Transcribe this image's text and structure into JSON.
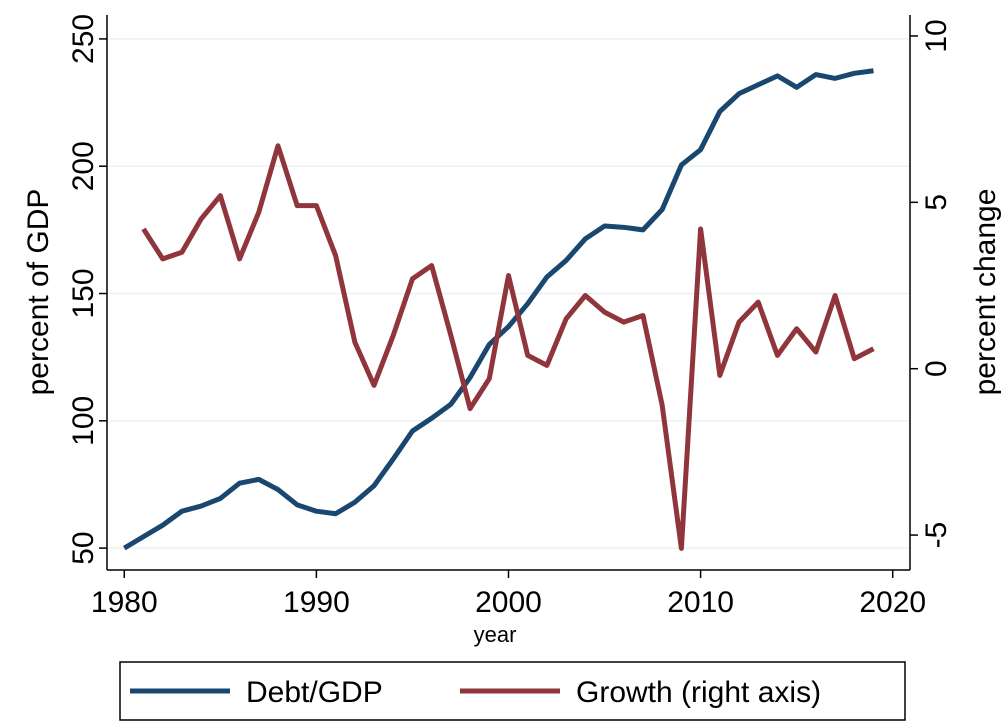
{
  "chart_data": {
    "type": "line",
    "x_label": "year",
    "y_label": "percent of GDP",
    "y2_label": "percent change",
    "x": [
      1980,
      1981,
      1982,
      1983,
      1984,
      1985,
      1986,
      1987,
      1988,
      1989,
      1990,
      1991,
      1992,
      1993,
      1994,
      1995,
      1996,
      1997,
      1998,
      1999,
      2000,
      2001,
      2002,
      2003,
      2004,
      2005,
      2006,
      2007,
      2008,
      2009,
      2010,
      2011,
      2012,
      2013,
      2014,
      2015,
      2016,
      2017,
      2018,
      2019
    ],
    "series": [
      {
        "name": "Debt/GDP",
        "color": "#1a476f",
        "values": [
          50,
          54.5,
          59,
          64.5,
          66.5,
          69.5,
          75.5,
          77,
          73,
          67,
          64.5,
          63.5,
          68,
          74.5,
          85,
          96,
          101,
          106.5,
          117,
          130,
          137,
          146,
          156.5,
          163,
          171.5,
          176.5,
          176,
          175,
          183,
          200.5,
          206.5,
          221.5,
          228.5,
          232,
          235.5,
          231,
          236,
          234.5,
          236.5,
          237.5
        ]
      },
      {
        "name": "Growth (right axis)",
        "color": "#90353b",
        "axis": "y2",
        "values": [
          null,
          4.2,
          3.3,
          3.5,
          4.5,
          5.2,
          3.3,
          4.7,
          6.7,
          4.9,
          4.9,
          3.4,
          0.8,
          -0.5,
          1.0,
          2.7,
          3.1,
          1.0,
          -1.2,
          -0.3,
          2.8,
          0.4,
          0.1,
          1.5,
          2.2,
          1.7,
          1.4,
          1.6,
          -1.1,
          -5.4,
          4.2,
          -0.2,
          1.4,
          2.0,
          0.4,
          1.2,
          0.5,
          2.2,
          0.3,
          0.6
        ]
      }
    ],
    "xlim": [
      1979.1,
      2020.9
    ],
    "xticks": [
      1980,
      1990,
      2000,
      2010,
      2020
    ],
    "ylim": [
      41.4,
      259.4
    ],
    "yticks": [
      50,
      100,
      150,
      200,
      250
    ],
    "y2lim": [
      -6.05,
      10.63
    ],
    "y2ticks": [
      -5,
      0,
      5,
      10
    ],
    "grid": true
  }
}
